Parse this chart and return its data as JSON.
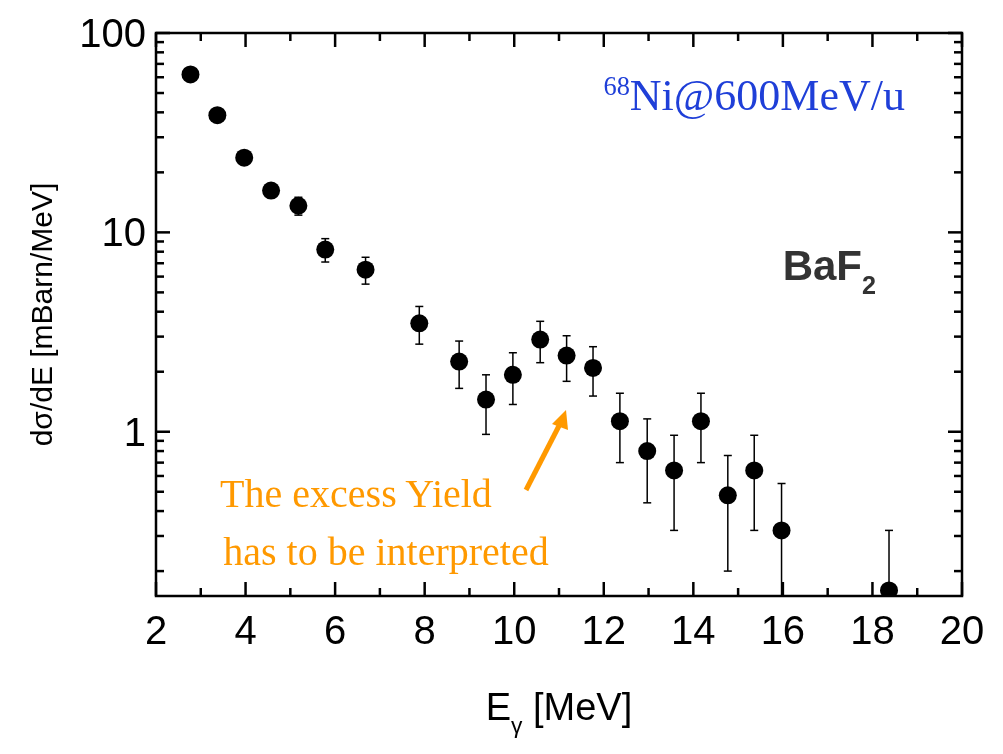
{
  "chart_data": {
    "type": "scatter",
    "xlabel": "E$_{γ}$ [MeV]",
    "ylabel": "dσ/dE [mBarn/MeV]",
    "log": "y",
    "marker": "circle",
    "grid": false,
    "xlim": [
      2,
      20
    ],
    "ylim": [
      0.15,
      100
    ],
    "xticks": [
      2,
      {
        "value": 3,
        "label": null
      },
      4,
      {
        "value": 5,
        "label": null
      },
      6,
      {
        "value": 7,
        "label": null
      },
      8,
      {
        "value": 9,
        "label": null
      },
      10,
      {
        "value": 11,
        "label": null
      },
      12,
      {
        "value": 13,
        "label": null
      },
      14,
      {
        "value": 15,
        "label": null
      },
      16,
      {
        "value": 17,
        "label": null
      },
      18,
      {
        "value": 19,
        "label": null
      },
      20
    ],
    "yticks": [
      {
        "value": 0.2,
        "label": null
      },
      {
        "value": 0.3,
        "label": null
      },
      {
        "value": 0.4,
        "label": null
      },
      {
        "value": 0.5,
        "label": null
      },
      {
        "value": 0.6,
        "label": null
      },
      {
        "value": 0.7,
        "label": null
      },
      {
        "value": 0.8,
        "label": null
      },
      {
        "value": 0.9,
        "label": null
      },
      1,
      {
        "value": 2,
        "label": null
      },
      {
        "value": 3,
        "label": null
      },
      {
        "value": 4,
        "label": null
      },
      {
        "value": 5,
        "label": null
      },
      {
        "value": 6,
        "label": null
      },
      {
        "value": 7,
        "label": null
      },
      {
        "value": 8,
        "label": null
      },
      {
        "value": 9,
        "label": null
      },
      10,
      {
        "value": 20,
        "label": null
      },
      {
        "value": 30,
        "label": null
      },
      {
        "value": 40,
        "label": null
      },
      {
        "value": 50,
        "label": null
      },
      {
        "value": 60,
        "label": null
      },
      {
        "value": 70,
        "label": null
      },
      {
        "value": 80,
        "label": null
      },
      {
        "value": 90,
        "label": null
      },
      100
    ],
    "x": [
      2.77,
      3.37,
      3.97,
      4.57,
      5.18,
      5.78,
      6.68,
      7.88,
      8.77,
      9.37,
      9.97,
      10.58,
      11.17,
      11.76,
      12.36,
      12.97,
      13.57,
      14.17,
      14.77,
      15.36,
      15.97,
      18.37
    ],
    "series": [
      {
        "color": "#000000",
        "values": [
          62,
          38.7,
          23.7,
          16.2,
          13.6,
          8.2,
          6.5,
          3.5,
          2.25,
          1.45,
          1.93,
          2.9,
          2.41,
          2.09,
          1.13,
          0.8,
          0.64,
          1.13,
          0.48,
          0.64,
          0.32,
          0.16
        ],
        "errors": [
          null,
          null,
          null,
          null,
          1.4,
          1.1,
          1.0,
          0.75,
          0.6,
          0.48,
          0.56,
          0.68,
          0.62,
          0.58,
          0.43,
          0.36,
          0.32,
          0.43,
          0.28,
          0.32,
          [
            0.15,
            0.55
          ],
          [
            0.15,
            0.32
          ]
        ]
      }
    ],
    "annotations": [
      "$^{68}$Ni@600MeV/u",
      "BaF$_{2}$",
      "The excess Yield\nhas to be interpreted"
    ]
  }
}
